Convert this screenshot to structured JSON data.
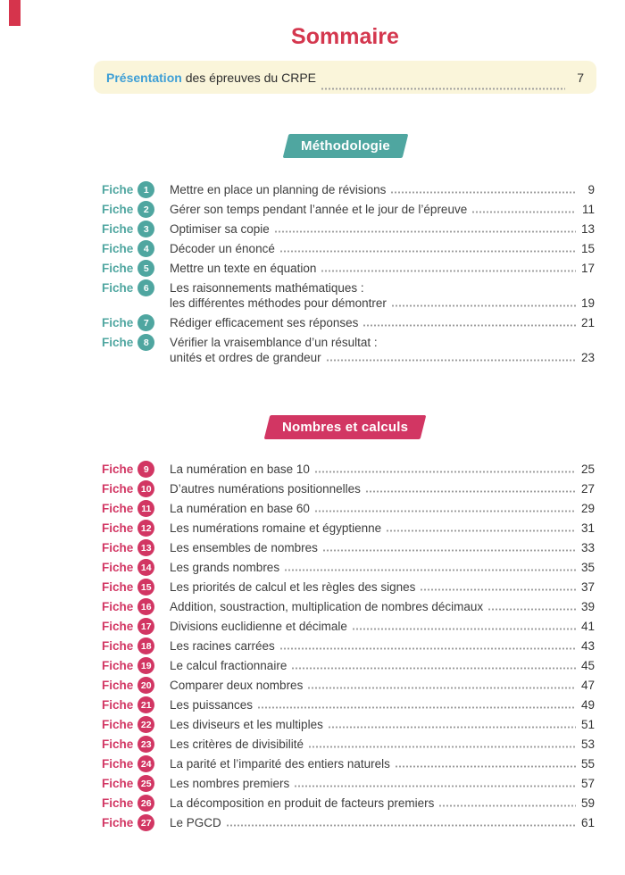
{
  "title": "Sommaire",
  "presentation": {
    "highlight": "Présentation",
    "rest": " des épreuves du CRPE",
    "page": "7"
  },
  "colors": {
    "title_red": "#D4374E",
    "presentation_blue": "#3E9FD6",
    "banner_cream": "#FAF5DA",
    "methodology_teal": "#4FA6A0",
    "nombres_pink": "#D23663",
    "bleed_mark_red": "#D6344C"
  },
  "sections": [
    {
      "label": "Méthodologie",
      "accent": "#4FA6A0",
      "fiche_label": "Fiche",
      "items": [
        {
          "num": "1",
          "lines": [
            "Mettre en place un planning de révisions"
          ],
          "page": "9"
        },
        {
          "num": "2",
          "lines": [
            "Gérer son temps pendant l’année et le jour de l’épreuve"
          ],
          "page": "11"
        },
        {
          "num": "3",
          "lines": [
            "Optimiser sa copie"
          ],
          "page": "13"
        },
        {
          "num": "4",
          "lines": [
            "Décoder un énoncé"
          ],
          "page": "15"
        },
        {
          "num": "5",
          "lines": [
            "Mettre un texte en équation"
          ],
          "page": "17"
        },
        {
          "num": "6",
          "lines": [
            "Les raisonnements mathématiques :",
            "les différentes méthodes pour démontrer"
          ],
          "page": "19"
        },
        {
          "num": "7",
          "lines": [
            "Rédiger efficacement ses réponses"
          ],
          "page": "21"
        },
        {
          "num": "8",
          "lines": [
            "Vérifier la vraisemblance d’un résultat :",
            "unités et ordres de grandeur"
          ],
          "page": "23"
        }
      ]
    },
    {
      "label": "Nombres et calculs",
      "accent": "#D23663",
      "fiche_label": "Fiche",
      "items": [
        {
          "num": "9",
          "lines": [
            "La numération en base 10"
          ],
          "page": "25"
        },
        {
          "num": "10",
          "lines": [
            "D’autres numérations positionnelles"
          ],
          "page": "27"
        },
        {
          "num": "11",
          "lines": [
            "La numération en base 60"
          ],
          "page": "29"
        },
        {
          "num": "12",
          "lines": [
            "Les numérations romaine et égyptienne"
          ],
          "page": "31"
        },
        {
          "num": "13",
          "lines": [
            "Les ensembles de nombres"
          ],
          "page": "33"
        },
        {
          "num": "14",
          "lines": [
            "Les grands nombres"
          ],
          "page": "35"
        },
        {
          "num": "15",
          "lines": [
            "Les priorités de calcul et les règles des signes"
          ],
          "page": "37"
        },
        {
          "num": "16",
          "lines": [
            "Addition, soustraction, multiplication de nombres décimaux"
          ],
          "page": "39"
        },
        {
          "num": "17",
          "lines": [
            "Divisions euclidienne et décimale"
          ],
          "page": "41"
        },
        {
          "num": "18",
          "lines": [
            "Les racines carrées"
          ],
          "page": "43"
        },
        {
          "num": "19",
          "lines": [
            "Le calcul fractionnaire"
          ],
          "page": "45"
        },
        {
          "num": "20",
          "lines": [
            "Comparer deux nombres"
          ],
          "page": "47"
        },
        {
          "num": "21",
          "lines": [
            "Les puissances"
          ],
          "page": "49"
        },
        {
          "num": "22",
          "lines": [
            "Les diviseurs et les multiples"
          ],
          "page": "51"
        },
        {
          "num": "23",
          "lines": [
            "Les critères de divisibilité"
          ],
          "page": "53"
        },
        {
          "num": "24",
          "lines": [
            "La parité et l’imparité des entiers naturels"
          ],
          "page": "55"
        },
        {
          "num": "25",
          "lines": [
            "Les nombres premiers"
          ],
          "page": "57"
        },
        {
          "num": "26",
          "lines": [
            "La décomposition en produit de facteurs premiers"
          ],
          "page": "59"
        },
        {
          "num": "27",
          "lines": [
            "Le PGCD"
          ],
          "page": "61"
        }
      ]
    }
  ]
}
